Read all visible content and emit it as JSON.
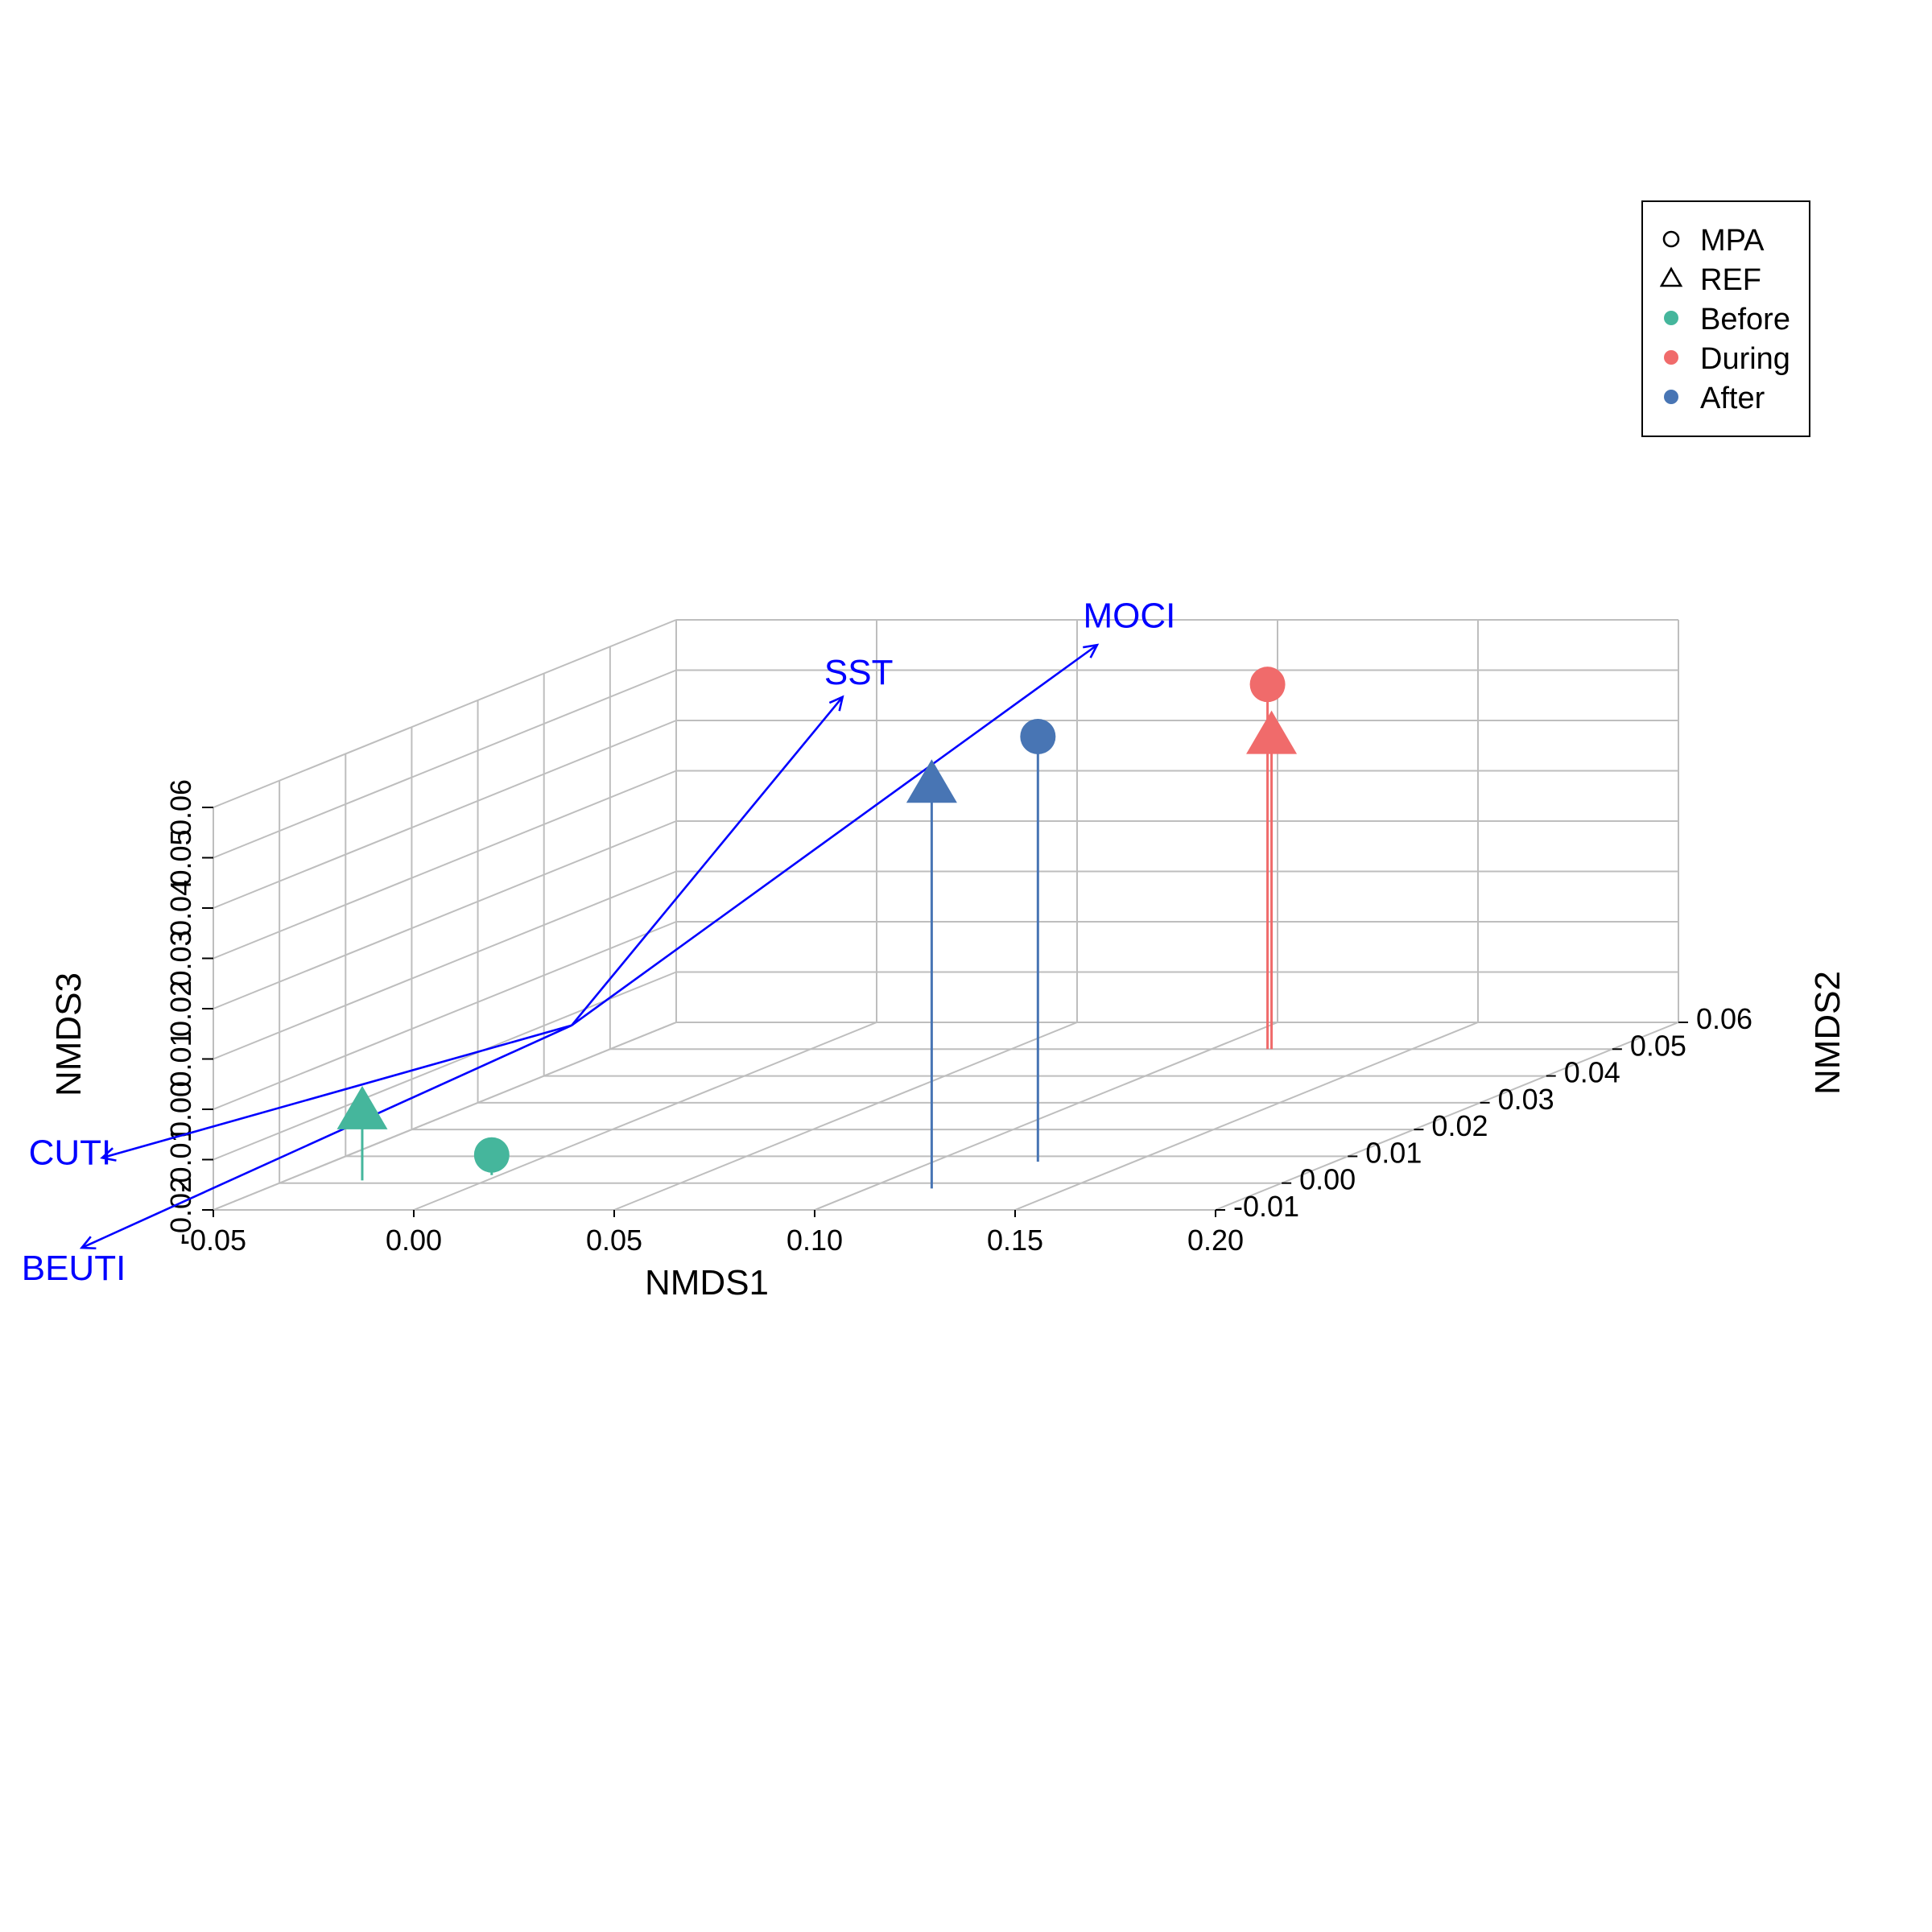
{
  "chart_data": {
    "type": "scatter3d",
    "axes": {
      "x": {
        "label": "NMDS1",
        "range": [
          -0.05,
          0.2
        ],
        "ticks": [
          "-0.05",
          "0.00",
          "0.05",
          "0.10",
          "0.15",
          "0.20"
        ]
      },
      "y": {
        "label": "NMDS2",
        "range": [
          -0.01,
          0.06
        ],
        "ticks": [
          "-0.01",
          "0.00",
          "0.01",
          "0.02",
          "0.03",
          "0.04",
          "0.05",
          "0.06"
        ]
      },
      "z": {
        "label": "NMDS3",
        "range": [
          -0.02,
          0.06
        ],
        "ticks": [
          "-0.02",
          "-0.01",
          "0.00",
          "0.01",
          "0.02",
          "0.03",
          "0.04",
          "0.05",
          "0.06"
        ]
      }
    },
    "grid": true,
    "points": [
      {
        "group": "MPA",
        "period": "Before",
        "shape": "circle",
        "x": -0.002,
        "y": 0.003,
        "z": -0.016
      },
      {
        "group": "REF",
        "period": "Before",
        "shape": "triangle",
        "x": -0.031,
        "y": 0.001,
        "z": -0.006
      },
      {
        "group": "MPA",
        "period": "During",
        "shape": "circle",
        "x": 0.114,
        "y": 0.05,
        "z": 0.0525
      },
      {
        "group": "REF",
        "period": "During",
        "shape": "triangle",
        "x": 0.115,
        "y": 0.05,
        "z": 0.0425
      },
      {
        "group": "MPA",
        "period": "After",
        "shape": "circle",
        "x": 0.126,
        "y": 0.008,
        "z": 0.0645
      },
      {
        "group": "REF",
        "period": "After",
        "shape": "triangle",
        "x": 0.116,
        "y": -0.002,
        "z": 0.0605
      }
    ],
    "vectors": [
      {
        "label": "SST",
        "x": 0.008,
        "y": 0.05,
        "z": 0.05
      },
      {
        "label": "MOCI",
        "x": 0.055,
        "y": 0.06,
        "z": 0.055
      },
      {
        "label": "CUTI",
        "x": -0.02,
        "y": -0.045,
        "z": 0.009
      },
      {
        "label": "BEUTI",
        "x": -0.0053,
        "y": -0.057,
        "z": -0.0025
      }
    ],
    "vector_origin": {
      "x": -0.02,
      "y": 0.026,
      "z": -0.0025
    },
    "legend": {
      "position": "top-right",
      "items": [
        {
          "label": "MPA",
          "kind": "shape",
          "shape": "circle"
        },
        {
          "label": "REF",
          "kind": "shape",
          "shape": "triangle"
        },
        {
          "label": "Before",
          "kind": "color",
          "color": "#45B69C"
        },
        {
          "label": "During",
          "kind": "color",
          "color": "#F06B6B"
        },
        {
          "label": "After",
          "kind": "color",
          "color": "#4875B4"
        }
      ]
    },
    "colors": {
      "Before": "#45B69C",
      "During": "#F06B6B",
      "After": "#4875B4",
      "vectors": "#0000FF",
      "grid": "#BEBEBE"
    }
  }
}
